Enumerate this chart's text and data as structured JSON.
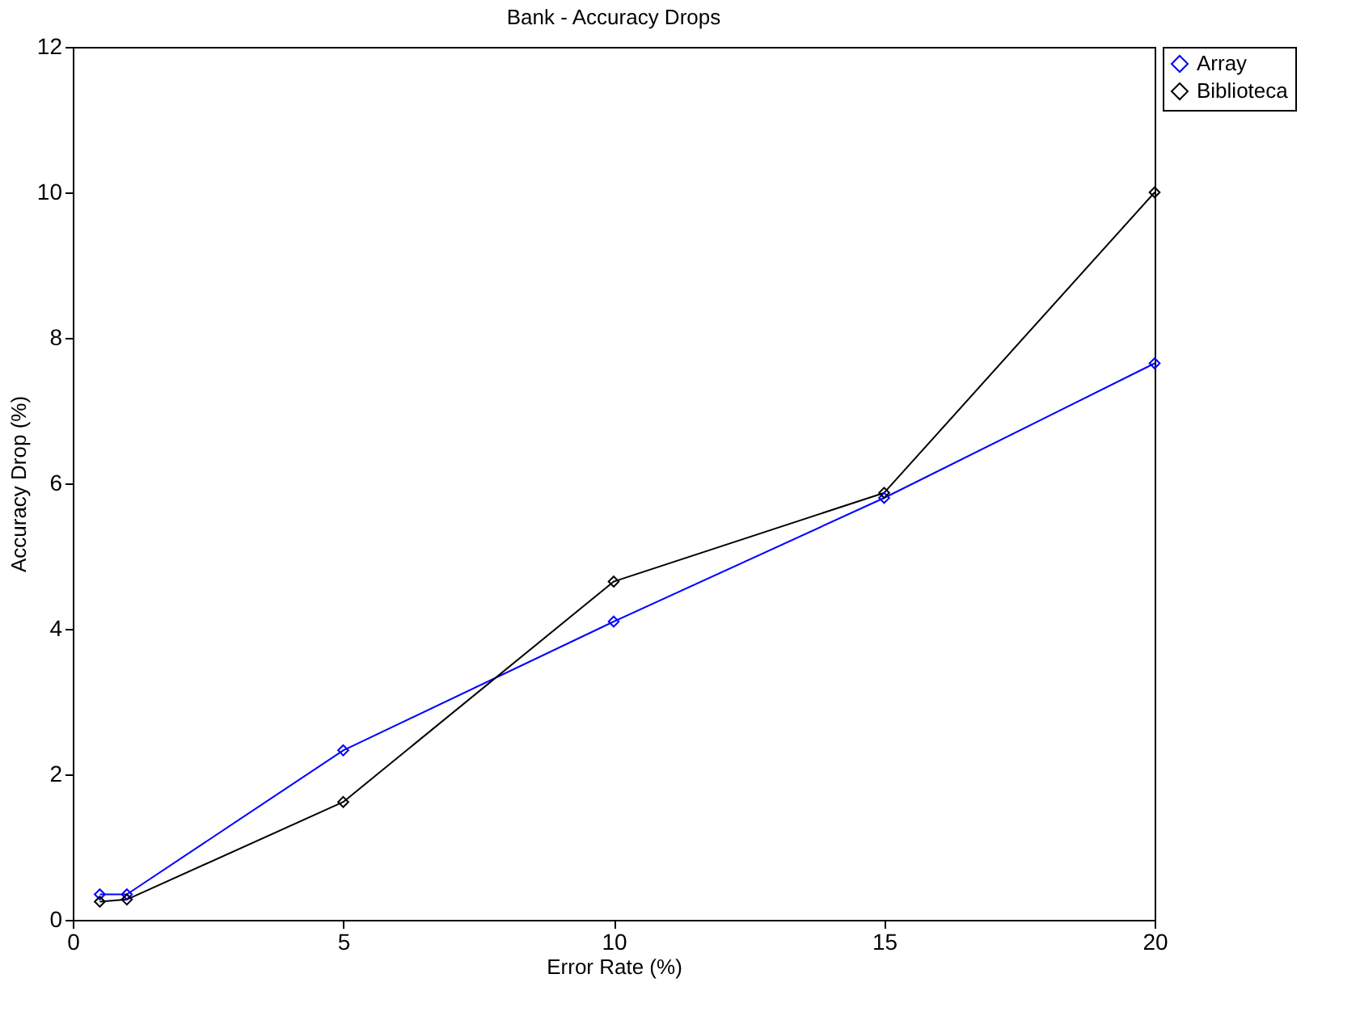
{
  "chart_data": {
    "type": "line",
    "title": "Bank - Accuracy Drops",
    "xlabel": "Error Rate (%)",
    "ylabel": "Accuracy Drop (%)",
    "x": [
      0.5,
      1,
      5,
      10,
      15,
      20
    ],
    "series": [
      {
        "name": "Array",
        "color": "#0000ff",
        "values": [
          0.35,
          0.35,
          2.33,
          4.1,
          5.8,
          7.65
        ]
      },
      {
        "name": "Biblioteca",
        "color": "#000000",
        "values": [
          0.25,
          0.28,
          1.62,
          4.65,
          5.87,
          10.0
        ]
      }
    ],
    "xlim": [
      0,
      20
    ],
    "xticks": [
      0,
      5,
      10,
      15,
      20
    ],
    "ylim": [
      0,
      12
    ],
    "yticks": [
      0,
      2,
      4,
      6,
      8,
      10,
      12
    ],
    "grid": false,
    "legend": "top right",
    "marker": "diamond",
    "line_style": "solid"
  }
}
